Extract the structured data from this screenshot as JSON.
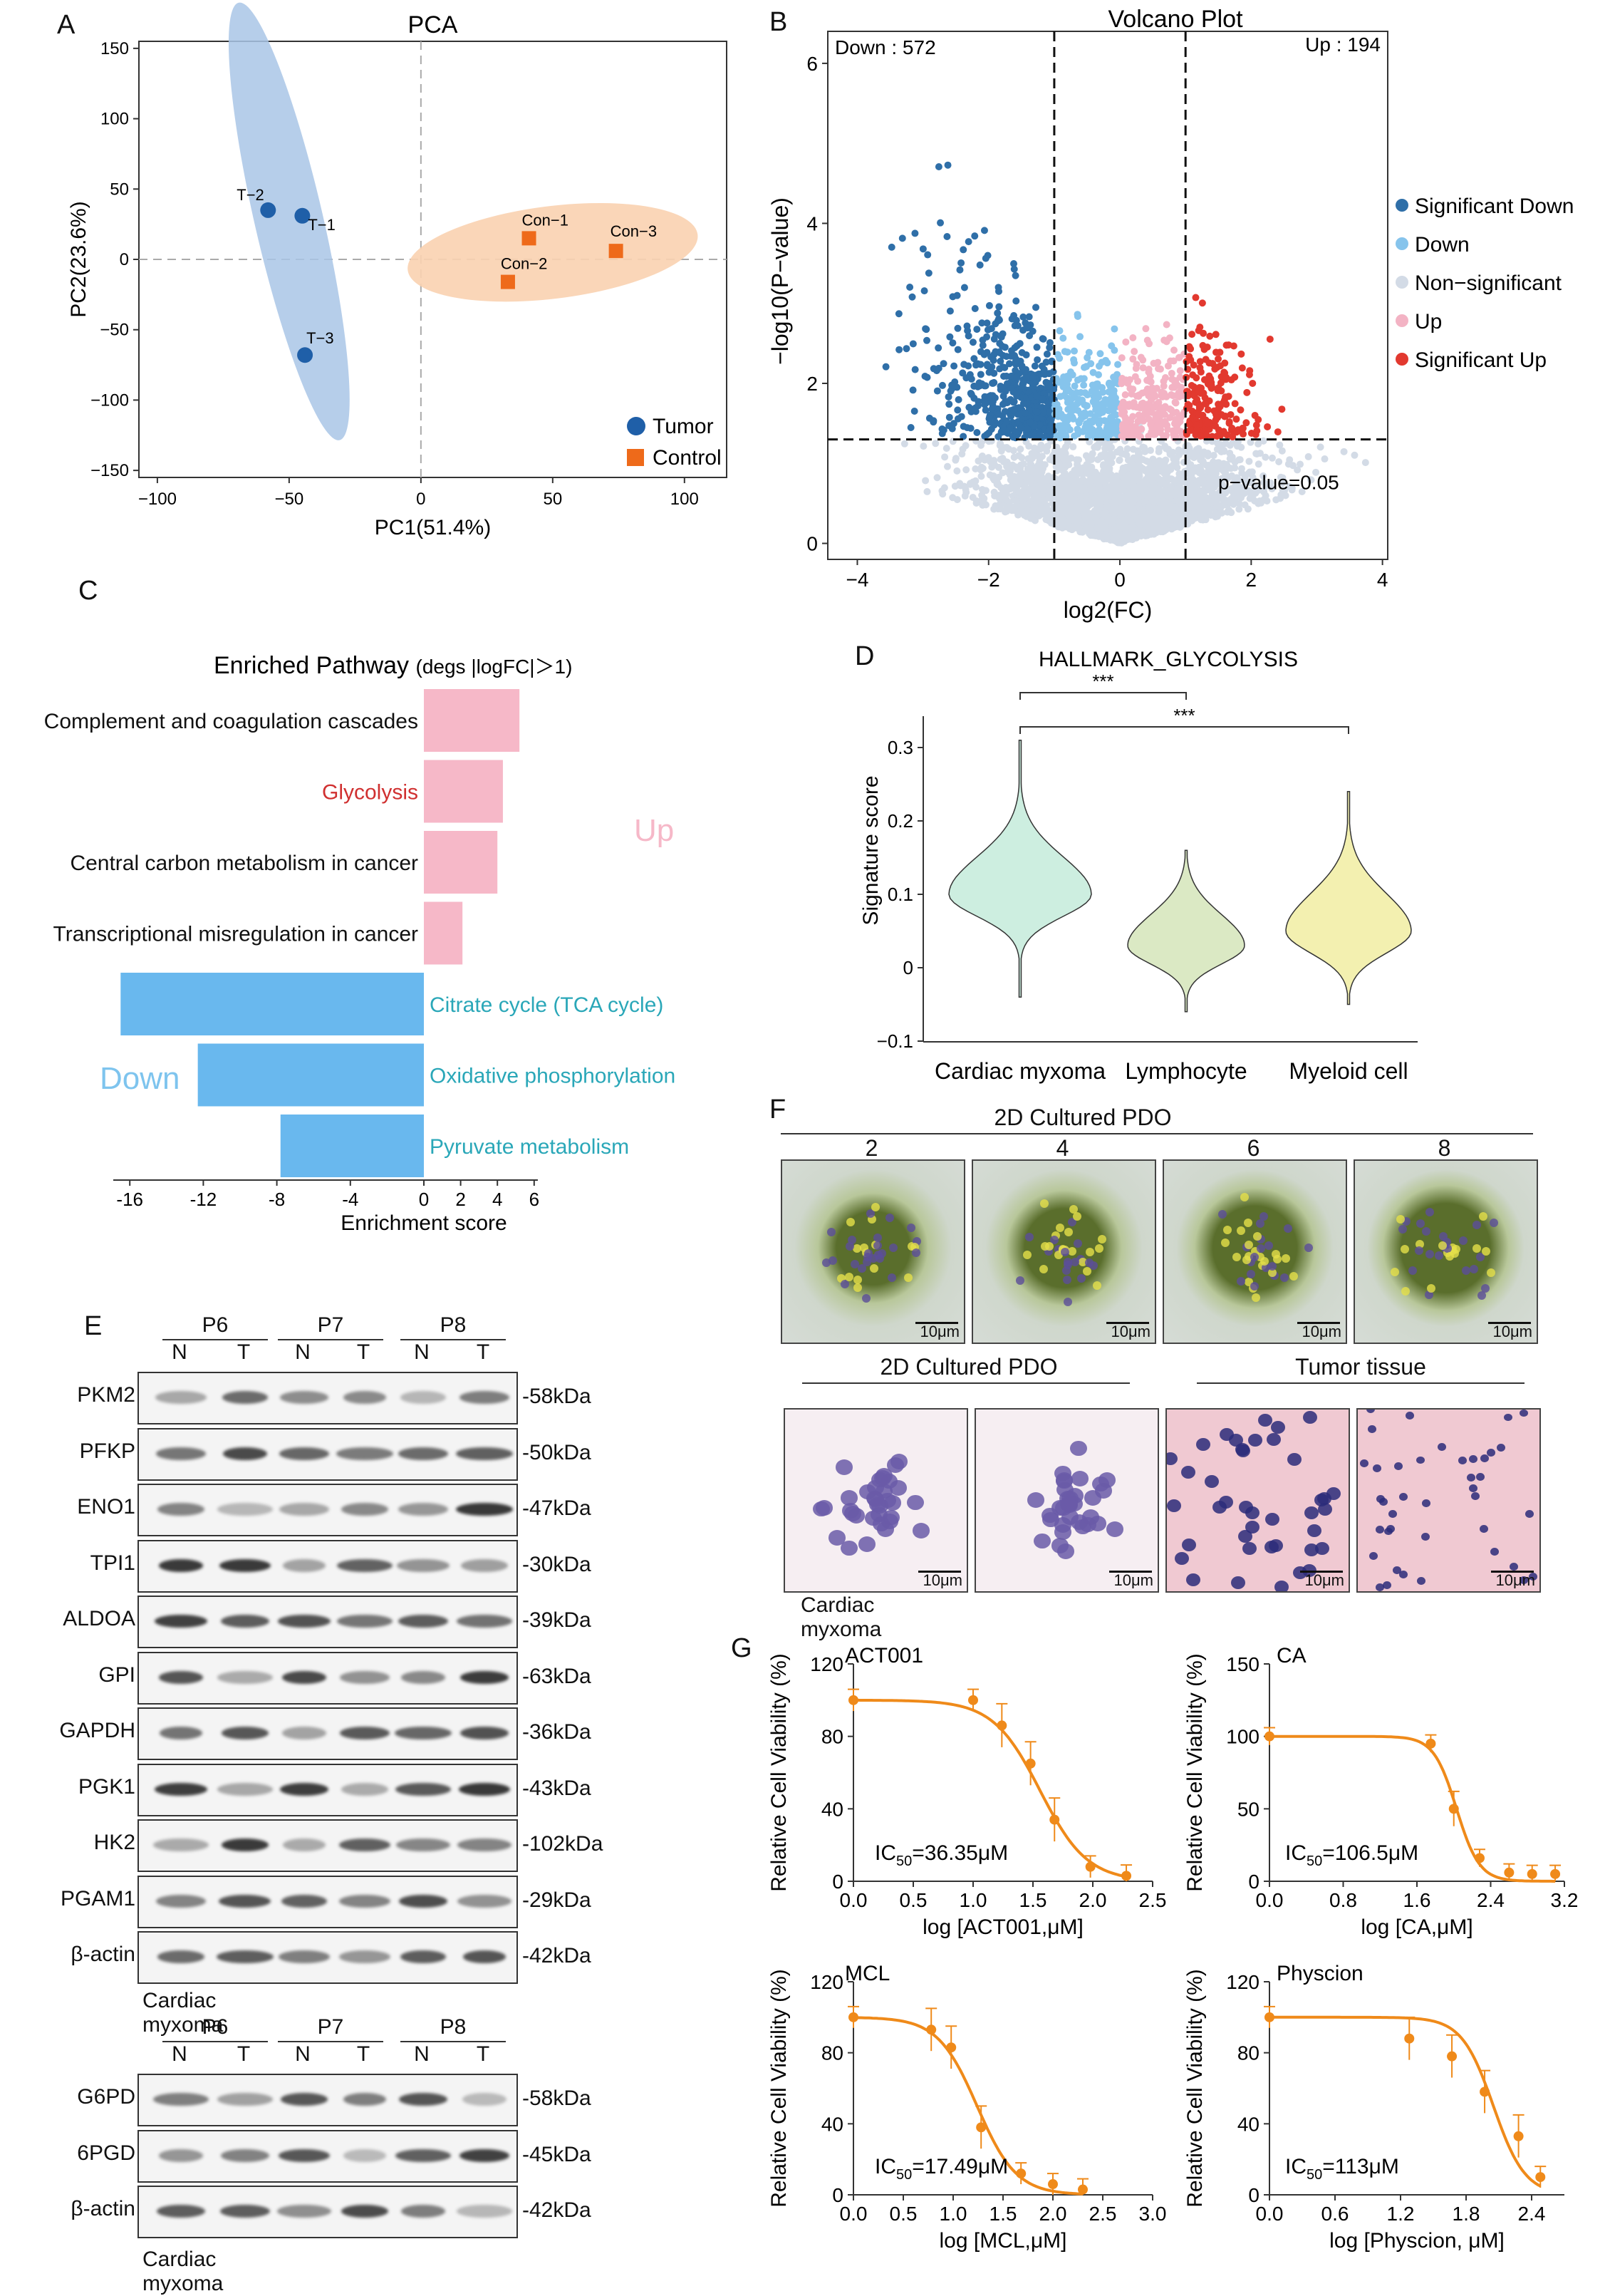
{
  "panels": {
    "A": "A",
    "B": "B",
    "C": "C",
    "D": "D",
    "E": "E",
    "F": "F",
    "G": "G"
  },
  "pca": {
    "title": "PCA",
    "xlabel": "PC1(51.4%)",
    "ylabel": "PC2(23.6%)",
    "xticks": [
      -100,
      -50,
      0,
      50,
      100
    ],
    "yticks": [
      150,
      100,
      50,
      0,
      -50,
      -100,
      -150
    ],
    "legend": [
      {
        "name": "Tumor",
        "color": "#1f5fa8"
      },
      {
        "name": "Control",
        "color": "#ee6a1a"
      }
    ],
    "points": [
      {
        "label": "T-2",
        "x": -58,
        "y": 35,
        "group": "Tumor"
      },
      {
        "label": "T-1",
        "x": -45,
        "y": 31,
        "group": "Tumor"
      },
      {
        "label": "T-3",
        "x": -44,
        "y": -68,
        "group": "Tumor"
      },
      {
        "label": "Con-1",
        "x": 41,
        "y": 15,
        "group": "Control"
      },
      {
        "label": "Con-3",
        "x": 74,
        "y": 6,
        "group": "Control"
      },
      {
        "label": "Con-2",
        "x": 33,
        "y": -16,
        "group": "Control"
      }
    ]
  },
  "volcano": {
    "title": "Volcano Plot",
    "xlabel": "log2(FC)",
    "ylabel": "−log10(P−value)",
    "down_label": "Down : 572",
    "up_label": "Up : 194",
    "pval_label": "p−value=0.05",
    "xticks": [
      -4,
      -2,
      0,
      2,
      4
    ],
    "yticks": [
      0,
      2,
      4,
      6
    ],
    "legend": [
      {
        "name": "Significant Down",
        "color": "#2f6fa8"
      },
      {
        "name": "Down",
        "color": "#86c4ec"
      },
      {
        "name": "Non−significant",
        "color": "#d3dbe6"
      },
      {
        "name": "Up",
        "color": "#f3b3c4"
      },
      {
        "name": "Significant Up",
        "color": "#e2392f"
      }
    ]
  },
  "enrich": {
    "title": "Enriched Pathway",
    "subtitle": "(degs |logFC|＞1)",
    "xlabel": "Enrichment score",
    "up_text": "Up",
    "down_text": "Down",
    "xticks": [
      -16,
      -12,
      -8,
      -4,
      0,
      2,
      4,
      6
    ],
    "bars": [
      {
        "name": "Complement and coagulation cascades",
        "value": 5.2,
        "dir": "up",
        "highlight": false
      },
      {
        "name": "Glycolysis",
        "value": 4.3,
        "dir": "up",
        "highlight": true
      },
      {
        "name": "Central carbon metabolism in cancer",
        "value": 4.0,
        "dir": "up",
        "highlight": false
      },
      {
        "name": "Transcriptional misregulation in cancer",
        "value": 2.1,
        "dir": "up",
        "highlight": false
      },
      {
        "name": "Citrate cycle (TCA cycle)",
        "value": -16.5,
        "dir": "down",
        "highlight": false
      },
      {
        "name": "Oxidative phosphorylation",
        "value": -12.3,
        "dir": "down",
        "highlight": false
      },
      {
        "name": "Pyruvate metabolism",
        "value": -7.8,
        "dir": "down",
        "highlight": false
      }
    ],
    "colors": {
      "up": "#f6b8c8",
      "down": "#69b8ee",
      "highlight": "#d03030",
      "downtext": "#2aa7b8",
      "uplabel": "#f6b8c8",
      "downlabel": "#7ec4ee"
    }
  },
  "violin": {
    "title": "HALLMARK_GLYCOLYSIS",
    "ylabel": "Signature score",
    "yticks": [
      0.3,
      0.2,
      0.1,
      0,
      -0.1
    ],
    "sig1": "***",
    "sig2": "***",
    "groups": [
      {
        "name": "Cardiac myxoma",
        "median": 0.1,
        "min": -0.04,
        "max": 0.31,
        "color": "#cdeee0"
      },
      {
        "name": "Lymphocyte",
        "median": 0.03,
        "min": -0.06,
        "max": 0.16,
        "color": "#dbe9c4"
      },
      {
        "name": "Myeloid cell",
        "median": 0.05,
        "min": -0.05,
        "max": 0.24,
        "color": "#f3f0b0"
      }
    ]
  },
  "blot": {
    "patients": [
      "P6",
      "P7",
      "P8"
    ],
    "lanes": [
      "N",
      "T",
      "N",
      "T",
      "N",
      "T"
    ],
    "rows1": [
      {
        "protein": "PKM2",
        "kda": "-58kDa"
      },
      {
        "protein": "PFKP",
        "kda": "-50kDa"
      },
      {
        "protein": "ENO1",
        "kda": "-47kDa"
      },
      {
        "protein": "TPI1",
        "kda": "-30kDa"
      },
      {
        "protein": "ALDOA",
        "kda": "-39kDa"
      },
      {
        "protein": "GPI",
        "kda": "-63kDa"
      },
      {
        "protein": "GAPDH",
        "kda": "-36kDa"
      },
      {
        "protein": "PGK1",
        "kda": "-43kDa"
      },
      {
        "protein": "HK2",
        "kda": "-102kDa"
      },
      {
        "protein": "PGAM1",
        "kda": "-29kDa"
      },
      {
        "protein": "β-actin",
        "kda": "-42kDa"
      }
    ],
    "caption1": "Cardiac myxoma",
    "rows2": [
      {
        "protein": "G6PD",
        "kda": "-58kDa"
      },
      {
        "protein": "6PGD",
        "kda": "-45kDa"
      },
      {
        "protein": "β-actin",
        "kda": "-42kDa"
      }
    ],
    "caption2": "Cardiac myxoma"
  },
  "micro": {
    "title_top": "2D Cultured PDO",
    "days": [
      "2",
      "4",
      "6",
      "8"
    ],
    "scale": "10μm",
    "title_bl": "2D Cultured PDO",
    "title_br": "Tumor tissue",
    "caption": "Cardiac myxoma"
  },
  "drugs": {
    "ylabel": "Relative Cell Viability (%)",
    "curves": [
      {
        "name": "ACT001",
        "ic50_pre": "IC",
        "ic50_sub": "50",
        "ic50_val": "=36.35μM",
        "xlabel": "log [ACT001,μM]",
        "xticks": [
          "0.0",
          "0.5",
          "1.0",
          "1.5",
          "2.0",
          "2.5"
        ],
        "xmax": 2.5,
        "yticks": [
          0,
          40,
          80,
          120
        ],
        "logic50": 1.56,
        "hill": 2.2,
        "points": [
          [
            0,
            100
          ],
          [
            1.0,
            100
          ],
          [
            1.24,
            86
          ],
          [
            1.48,
            65
          ],
          [
            1.68,
            34
          ],
          [
            1.98,
            8
          ],
          [
            2.28,
            3
          ]
        ]
      },
      {
        "name": "CA",
        "ic50_pre": "IC",
        "ic50_sub": "50",
        "ic50_val": "=106.5μM",
        "xlabel": "log [CA,μM]",
        "xticks": [
          "0.0",
          "0.8",
          "1.6",
          "2.4",
          "3.2"
        ],
        "xmax": 3.2,
        "yticks": [
          0,
          50,
          100,
          150
        ],
        "logic50": 2.03,
        "hill": 3.5,
        "points": [
          [
            0,
            100
          ],
          [
            1.75,
            95
          ],
          [
            2.0,
            50
          ],
          [
            2.28,
            16
          ],
          [
            2.6,
            6
          ],
          [
            2.85,
            5
          ],
          [
            3.1,
            5
          ]
        ]
      },
      {
        "name": "MCL",
        "ic50_pre": "IC",
        "ic50_sub": "50",
        "ic50_val": "=17.49μM",
        "xlabel": "log [MCL,μM]",
        "xticks": [
          "0.0",
          "0.5",
          "1.0",
          "1.5",
          "2.0",
          "2.5",
          "3.0"
        ],
        "xmax": 3.0,
        "yticks": [
          0,
          40,
          80,
          120
        ],
        "logic50": 1.24,
        "hill": 2.2,
        "points": [
          [
            0,
            100
          ],
          [
            0.78,
            93
          ],
          [
            0.98,
            83
          ],
          [
            1.28,
            38
          ],
          [
            1.68,
            12
          ],
          [
            2.0,
            6
          ],
          [
            2.3,
            3
          ]
        ]
      },
      {
        "name": "Physcion",
        "ic50_pre": "IC",
        "ic50_sub": "50",
        "ic50_val": "=113μM",
        "xlabel": "log [Physcion, μM]",
        "xticks": [
          "0.0",
          "0.6",
          "1.2",
          "1.8",
          "2.4"
        ],
        "xmax": 2.7,
        "yticks": [
          0,
          40,
          80,
          120
        ],
        "logic50": 2.05,
        "hill": 3.0,
        "points": [
          [
            0,
            100
          ],
          [
            1.28,
            88
          ],
          [
            1.67,
            78
          ],
          [
            1.97,
            58
          ],
          [
            2.28,
            33
          ],
          [
            2.48,
            10
          ]
        ]
      }
    ]
  }
}
